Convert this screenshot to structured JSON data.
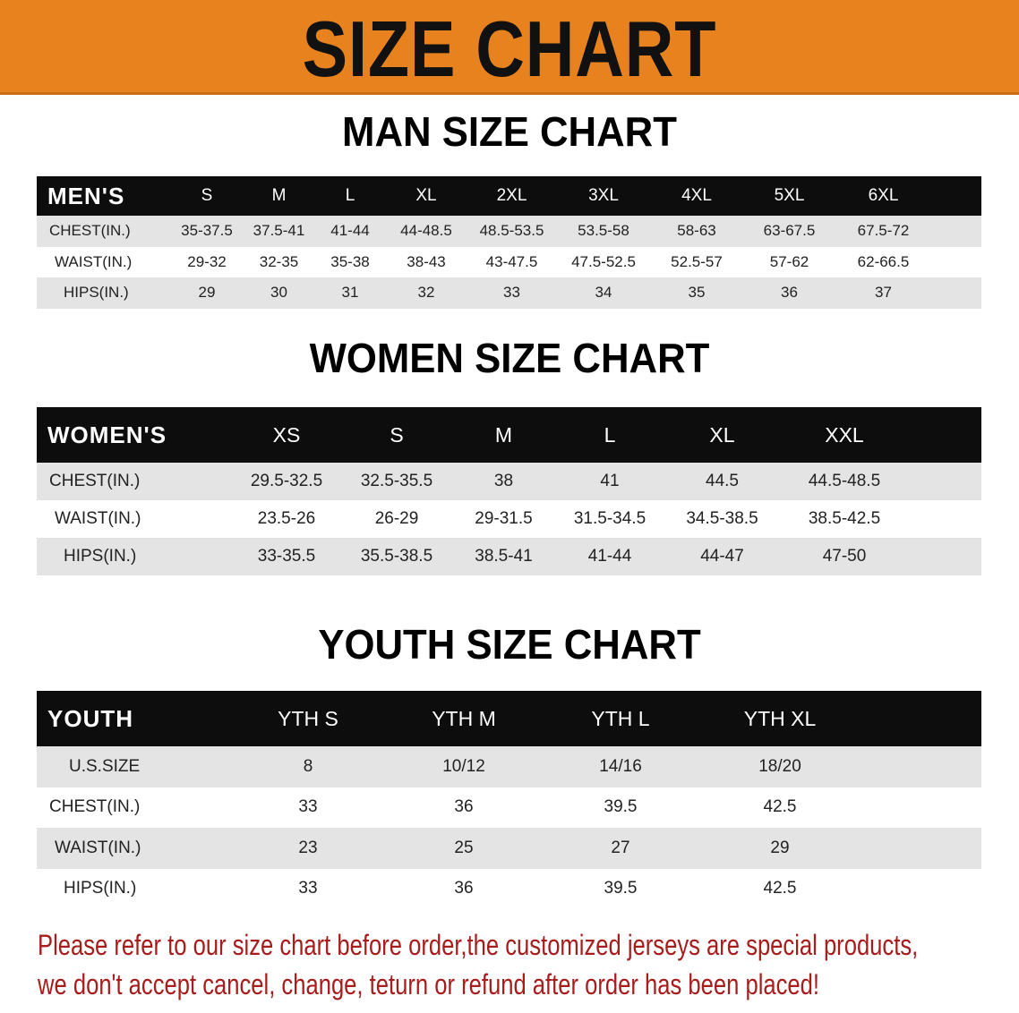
{
  "banner": {
    "title": "SIZE CHART",
    "color": "#e8821e"
  },
  "chart_data": [
    {
      "type": "table",
      "title": "MAN SIZE CHART",
      "header_label": "MEN'S",
      "columns": [
        "S",
        "M",
        "L",
        "XL",
        "2XL",
        "3XL",
        "4XL",
        "5XL",
        "6XL"
      ],
      "rows": [
        {
          "label": "CHEST(IN.)",
          "values": [
            "35-37.5",
            "37.5-41",
            "41-44",
            "44-48.5",
            "48.5-53.5",
            "53.5-58",
            "58-63",
            "63-67.5",
            "67.5-72"
          ]
        },
        {
          "label": "WAIST(IN.)",
          "values": [
            "29-32",
            "32-35",
            "35-38",
            "38-43",
            "43-47.5",
            "47.5-52.5",
            "52.5-57",
            "57-62",
            "62-66.5"
          ]
        },
        {
          "label": "HIPS(IN.)",
          "values": [
            "29",
            "30",
            "31",
            "32",
            "33",
            "34",
            "35",
            "36",
            "37"
          ]
        }
      ]
    },
    {
      "type": "table",
      "title": "WOMEN SIZE CHART",
      "header_label": "WOMEN'S",
      "columns": [
        "XS",
        "S",
        "M",
        "L",
        "XL",
        "XXL"
      ],
      "rows": [
        {
          "label": "CHEST(IN.)",
          "values": [
            "29.5-32.5",
            "32.5-35.5",
            "38",
            "41",
            "44.5",
            "44.5-48.5"
          ]
        },
        {
          "label": "WAIST(IN.)",
          "values": [
            "23.5-26",
            "26-29",
            "29-31.5",
            "31.5-34.5",
            "34.5-38.5",
            "38.5-42.5"
          ]
        },
        {
          "label": "HIPS(IN.)",
          "values": [
            "33-35.5",
            "35.5-38.5",
            "38.5-41",
            "41-44",
            "44-47",
            "47-50"
          ]
        }
      ]
    },
    {
      "type": "table",
      "title": "YOUTH SIZE CHART",
      "header_label": "YOUTH",
      "columns": [
        "YTH S",
        "YTH M",
        "YTH L",
        "YTH XL"
      ],
      "rows": [
        {
          "label": "U.S.SIZE",
          "values": [
            "8",
            "10/12",
            "14/16",
            "18/20"
          ]
        },
        {
          "label": "CHEST(IN.)",
          "values": [
            "33",
            "36",
            "39.5",
            "42.5"
          ]
        },
        {
          "label": "WAIST(IN.)",
          "values": [
            "23",
            "25",
            "27",
            "29"
          ]
        },
        {
          "label": "HIPS(IN.)",
          "values": [
            "33",
            "36",
            "39.5",
            "42.5"
          ]
        }
      ]
    }
  ],
  "footer": {
    "line1": "Please refer to our size chart before order,the customized jerseys are special products,",
    "line2": "we don't accept cancel, change, teturn or refund after order has been placed!",
    "color": "#a81c1c"
  }
}
